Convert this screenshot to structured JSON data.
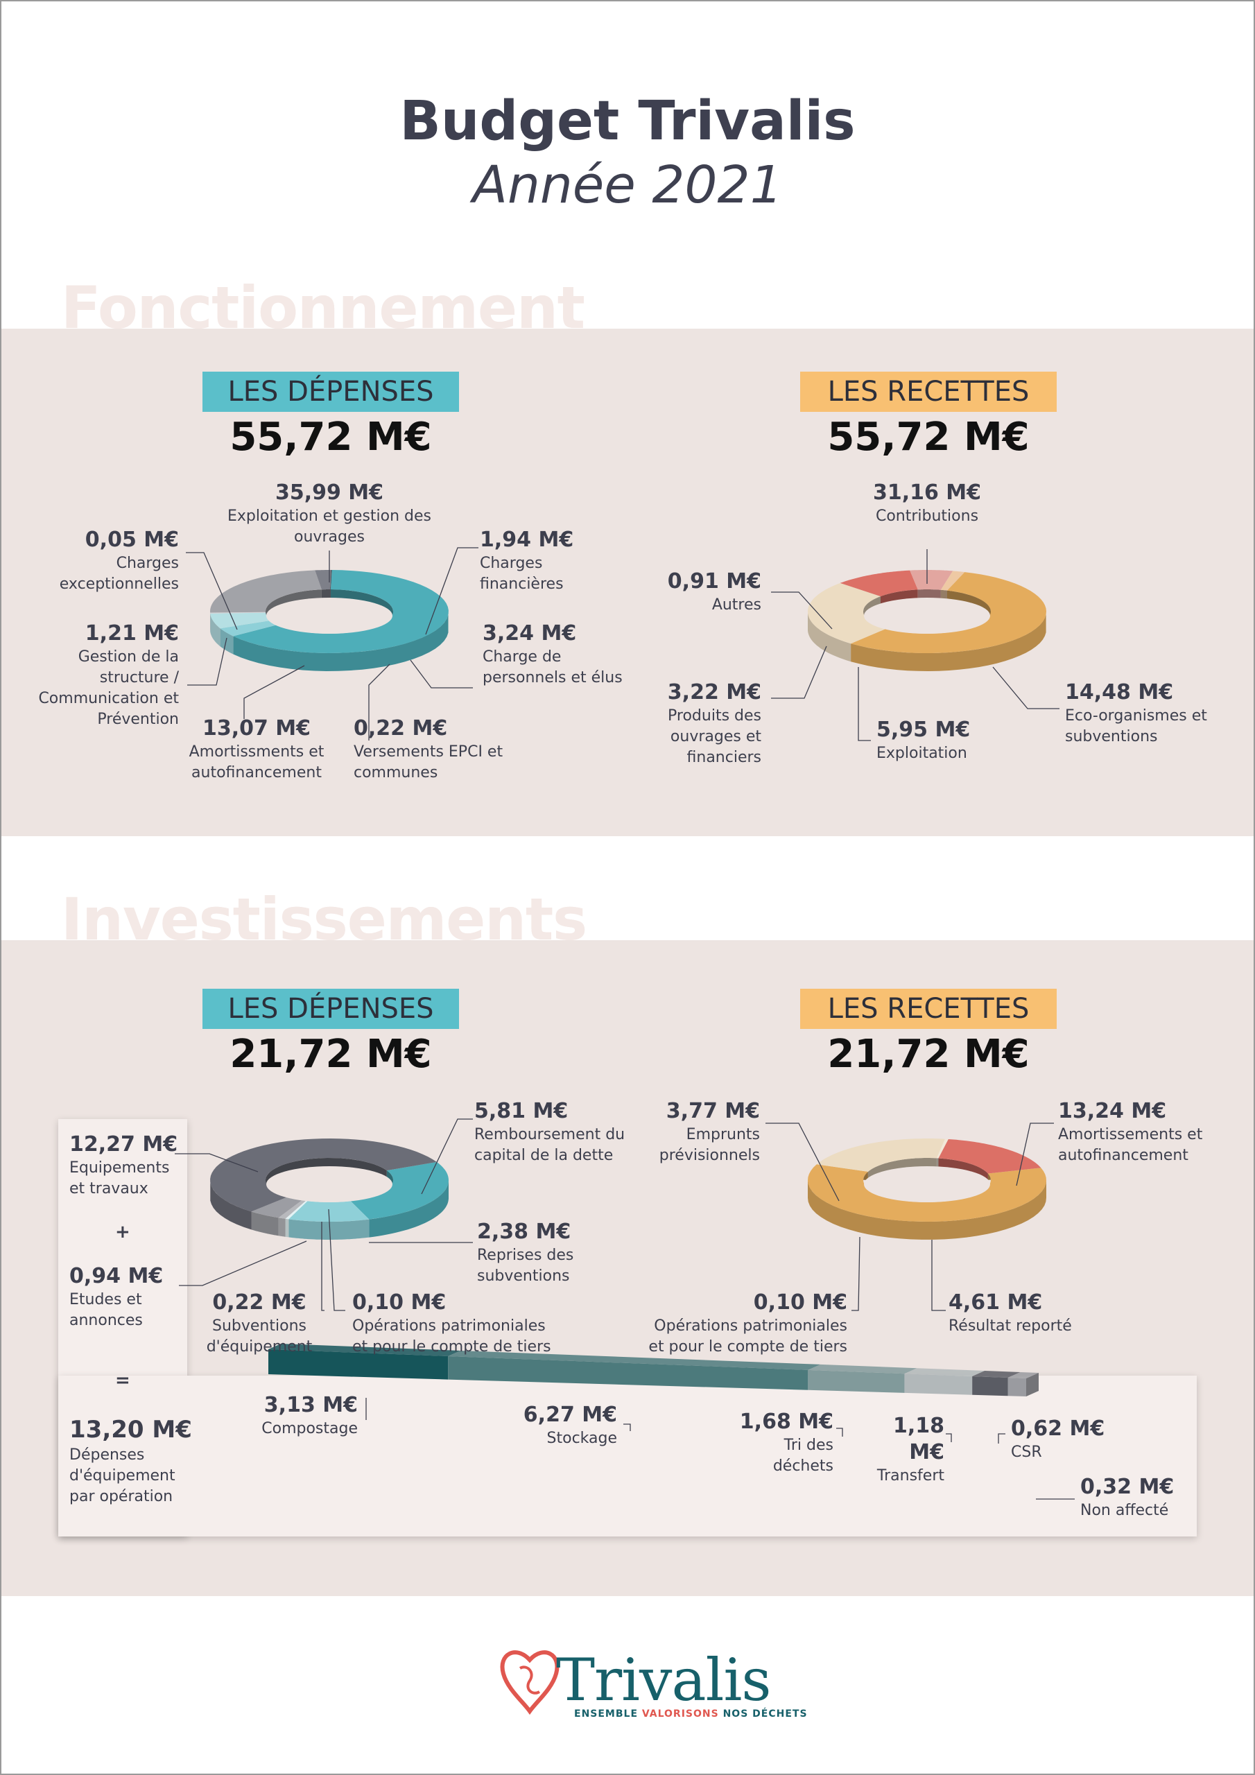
{
  "header": {
    "title": "Budget Trivalis",
    "subtitle": "Année 2021"
  },
  "colors": {
    "band": "#ede4e1",
    "teal": "#5bbfca",
    "orange": "#f8c072",
    "dark": "#3e4050"
  },
  "fonctionnement": {
    "section_title": "Fonctionnement",
    "depenses": {
      "tag": "LES DÉPENSES",
      "total": "55,72 M€"
    },
    "recettes": {
      "tag": "LES RECETTES",
      "total": "55,72 M€"
    }
  },
  "investissements": {
    "section_title": "Investissements",
    "depenses": {
      "tag": "LES DÉPENSES",
      "total": "21,72 M€"
    },
    "recettes": {
      "tag": "LES RECETTES",
      "total": "21,72 M€"
    },
    "equip": {
      "plus": "+",
      "equals": "=",
      "total_value": "13,20 M€",
      "total_label": "Dépenses d'équipement par opération"
    }
  },
  "chart_data": [
    {
      "type": "pie",
      "name": "Fonctionnement – Les dépenses",
      "total": "55,72 M€",
      "slices": [
        {
          "label": "Exploitation et gestion des ouvrages",
          "value": 35.99,
          "display": "35,99 M€",
          "color": "#4eaeb9"
        },
        {
          "label": "Charges financières",
          "value": 1.94,
          "display": "1,94 M€",
          "color": "#8fd0d8"
        },
        {
          "label": "Charge de personnels et élus",
          "value": 3.24,
          "display": "3,24 M€",
          "color": "#b5dfe3"
        },
        {
          "label": "Versements EPCI et communes",
          "value": 0.22,
          "display": "0,22 M€",
          "color": "#d1d3d6"
        },
        {
          "label": "Amortissments et autofinancement",
          "value": 13.07,
          "display": "13,07 M€",
          "color": "#a2a3a8"
        },
        {
          "label": "Gestion de la structure / Communication et Prévention",
          "value": 1.21,
          "display": "1,21 M€",
          "color": "#7e8089"
        },
        {
          "label": "Charges exceptionnelles",
          "value": 0.05,
          "display": "0,05 M€",
          "color": "#3b3d48"
        }
      ]
    },
    {
      "type": "pie",
      "name": "Fonctionnement – Les recettes",
      "total": "55,72 M€",
      "slices": [
        {
          "label": "Contributions",
          "value": 31.16,
          "display": "31,16 M€",
          "color": "#e4ac5d"
        },
        {
          "label": "Eco-organismes et subventions",
          "value": 14.48,
          "display": "14,48 M€",
          "color": "#ecdcc2"
        },
        {
          "label": "Exploitation",
          "value": 5.95,
          "display": "5,95 M€",
          "color": "#dc7066"
        },
        {
          "label": "Produits des ouvrages et financiers",
          "value": 3.22,
          "display": "3,22 M€",
          "color": "#e2a6a0"
        },
        {
          "label": "Autres",
          "value": 0.91,
          "display": "0,91 M€",
          "color": "#eec9a4"
        }
      ]
    },
    {
      "type": "pie",
      "name": "Investissements – Les dépenses",
      "total": "21,72 M€",
      "slices": [
        {
          "label": "Remboursement du capital de la dette",
          "value": 5.81,
          "display": "5,81 M€",
          "color": "#4eaeb9"
        },
        {
          "label": "Reprises des subventions",
          "value": 2.38,
          "display": "2,38 M€",
          "color": "#8fd0d8"
        },
        {
          "label": "Opérations patrimoniales et pour le compte de tiers",
          "value": 0.1,
          "display": "0,10 M€",
          "color": "#e3f2f4"
        },
        {
          "label": "Subventions d'équipement",
          "value": 0.22,
          "display": "0,22 M€",
          "color": "#b8b9bd"
        },
        {
          "label": "Etudes et annonces",
          "value": 0.94,
          "display": "0,94 M€",
          "color": "#9c9da3"
        },
        {
          "label": "Equipements et travaux",
          "value": 12.27,
          "display": "12,27 M€",
          "color": "#6b6d77"
        }
      ]
    },
    {
      "type": "pie",
      "name": "Investissements – Les recettes",
      "total": "21,72 M€",
      "slices": [
        {
          "label": "Amortissements et autofinancement",
          "value": 13.24,
          "display": "13,24 M€",
          "color": "#e4ac5d"
        },
        {
          "label": "Résultat reporté",
          "value": 4.61,
          "display": "4,61 M€",
          "color": "#ecdcc2"
        },
        {
          "label": "Opérations patrimoniales et pour le compte de tiers",
          "value": 0.1,
          "display": "0,10 M€",
          "color": "#f2e8d8"
        },
        {
          "label": "Emprunts prévisionnels",
          "value": 3.77,
          "display": "3,77 M€",
          "color": "#dc7066"
        }
      ]
    },
    {
      "type": "bar",
      "name": "Dépenses d'équipement par opération",
      "total": "13,20 M€",
      "categories": [
        "Compostage",
        "Stockage",
        "Tri des déchets",
        "Transfert",
        "CSR",
        "Non affecté"
      ],
      "values": [
        3.13,
        6.27,
        1.68,
        1.18,
        0.62,
        0.32
      ],
      "displays": [
        "3,13 M€",
        "6,27 M€",
        "1,68 M€",
        "1,18 M€",
        "0,62 M€",
        "0,32 M€"
      ],
      "colors": [
        "#16555a",
        "#4c7a7c",
        "#819a9b",
        "#b2b8ba",
        "#5a5c64",
        "#9a9ba0"
      ]
    }
  ],
  "footer": {
    "logo": "Trivalis",
    "tagline_1": "ENSEMBLE",
    "tagline_2": "VALORISONS",
    "tagline_3": "NOS DÉCHETS"
  }
}
